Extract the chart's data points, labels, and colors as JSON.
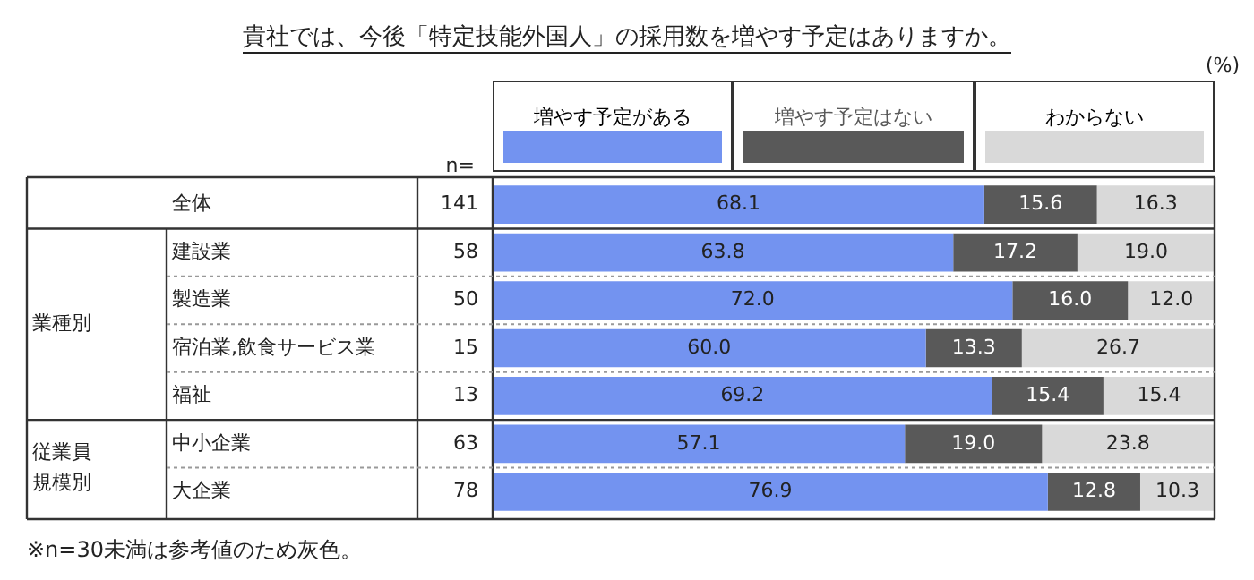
{
  "chart_data": {
    "type": "bar",
    "orientation": "horizontal",
    "stacked": true,
    "title": "貴社では、今後「特定技能外国人」の採用数を増やす予定はありますか。",
    "categories": [
      "全体",
      "建設業",
      "製造業",
      "宿泊業,飲食サービス業",
      "福祉",
      "中小企業",
      "大企業"
    ],
    "series": [
      {
        "name": "増やす予定がある",
        "color": "#7393f0",
        "values": [
          68.1,
          63.8,
          72.0,
          60.0,
          69.2,
          57.1,
          76.9
        ],
        "value_labels": [
          "68.1",
          "63.8",
          "72.0",
          "60.0",
          "69.2",
          "57.1",
          "76.9"
        ]
      },
      {
        "name": "増やす予定はない",
        "color": "#595959",
        "values": [
          15.6,
          17.2,
          16.0,
          13.3,
          15.4,
          19.0,
          12.8
        ],
        "value_labels": [
          "15.6",
          "17.2",
          "16.0",
          "13.3",
          "15.4",
          "19.0",
          "12.8"
        ]
      },
      {
        "name": "わからない",
        "color": "#d9d9d9",
        "values": [
          16.3,
          19.0,
          12.0,
          26.7,
          15.4,
          23.8,
          10.3
        ],
        "value_labels": [
          "16.3",
          "19.0",
          "12.0",
          "26.7",
          "15.4",
          "23.8",
          "10.3"
        ]
      }
    ],
    "xlim": [
      0,
      100
    ],
    "tick_labels": false,
    "legend": "top",
    "annotations": [
      "(%)",
      "※n=30未満は参考値のため灰色。",
      "n=",
      "141",
      "58",
      "50",
      "15",
      "13",
      "63",
      "78",
      "業種別",
      "従業員規模別"
    ]
  }
}
